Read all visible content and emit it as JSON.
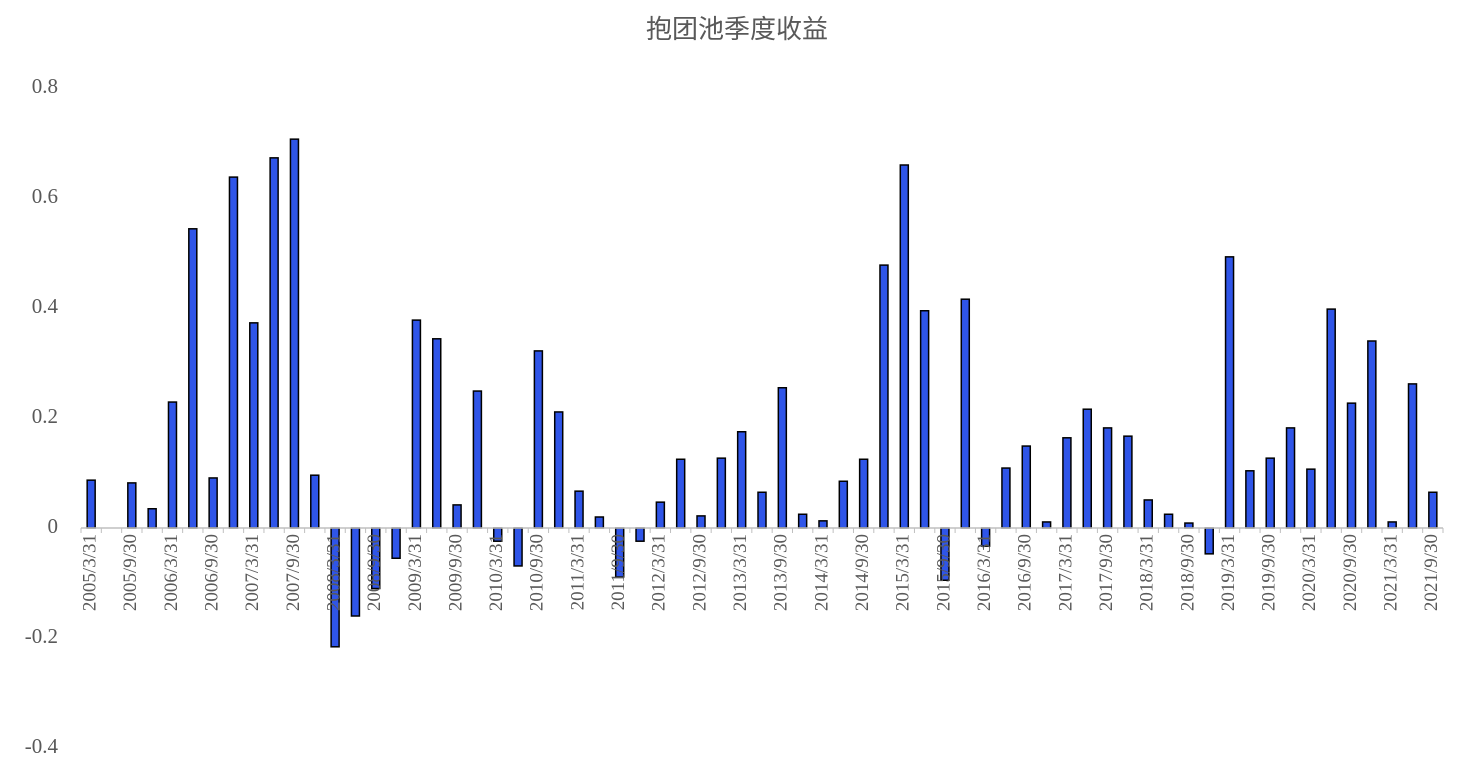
{
  "chart_data": {
    "type": "bar",
    "title": "抱团池季度收益",
    "categories": [
      "2005/3/31",
      null,
      "2005/9/30",
      null,
      "2006/3/31",
      null,
      "2006/9/30",
      null,
      "2007/3/31",
      null,
      "2007/9/30",
      null,
      "2008/3/31",
      null,
      "2008/9/30",
      null,
      "2009/3/31",
      null,
      "2009/9/30",
      null,
      "2010/3/31",
      null,
      "2010/9/30",
      null,
      "2011/3/31",
      null,
      "2011/9/30",
      null,
      "2012/3/31",
      null,
      "2012/9/30",
      null,
      "2013/3/31",
      null,
      "2013/9/30",
      null,
      "2014/3/31",
      null,
      "2014/9/30",
      null,
      "2015/3/31",
      null,
      "2015/9/30",
      null,
      "2016/3/31",
      null,
      "2016/9/30",
      null,
      "2017/3/31",
      null,
      "2017/9/30",
      null,
      "2018/3/31",
      null,
      "2018/9/30",
      null,
      "2019/3/31",
      null,
      "2019/9/30",
      null,
      "2020/3/31",
      null,
      "2020/9/30",
      null,
      "2021/3/31",
      null,
      "2021/9/30"
    ],
    "values": [
      0.087,
      0,
      0.082,
      0.035,
      0.229,
      0.544,
      0.091,
      0.638,
      0.373,
      0.673,
      0.707,
      0.096,
      -0.216,
      -0.16,
      -0.11,
      -0.055,
      0.378,
      0.344,
      0.042,
      0.249,
      -0.024,
      -0.069,
      0.322,
      0.211,
      0.067,
      0.02,
      -0.089,
      -0.024,
      0.047,
      0.125,
      0.022,
      0.127,
      0.175,
      0.065,
      0.255,
      0.025,
      0.013,
      0.085,
      0.125,
      0.478,
      0.66,
      0.395,
      -0.095,
      0.416,
      -0.033,
      0.109,
      0.149,
      0.011,
      0.164,
      0.216,
      0.182,
      0.167,
      0.051,
      0.025,
      0.009,
      -0.047,
      0.493,
      0.104,
      0.127,
      0.182,
      0.107,
      0.398,
      0.227,
      0.34,
      0.011,
      0.262,
      0.065
    ],
    "color": "#2f55e8",
    "ylim": [
      -0.4,
      0.8
    ],
    "yticks": [
      -0.4,
      -0.2,
      0,
      0.2,
      0.4,
      0.6,
      0.8
    ],
    "grid": false
  }
}
